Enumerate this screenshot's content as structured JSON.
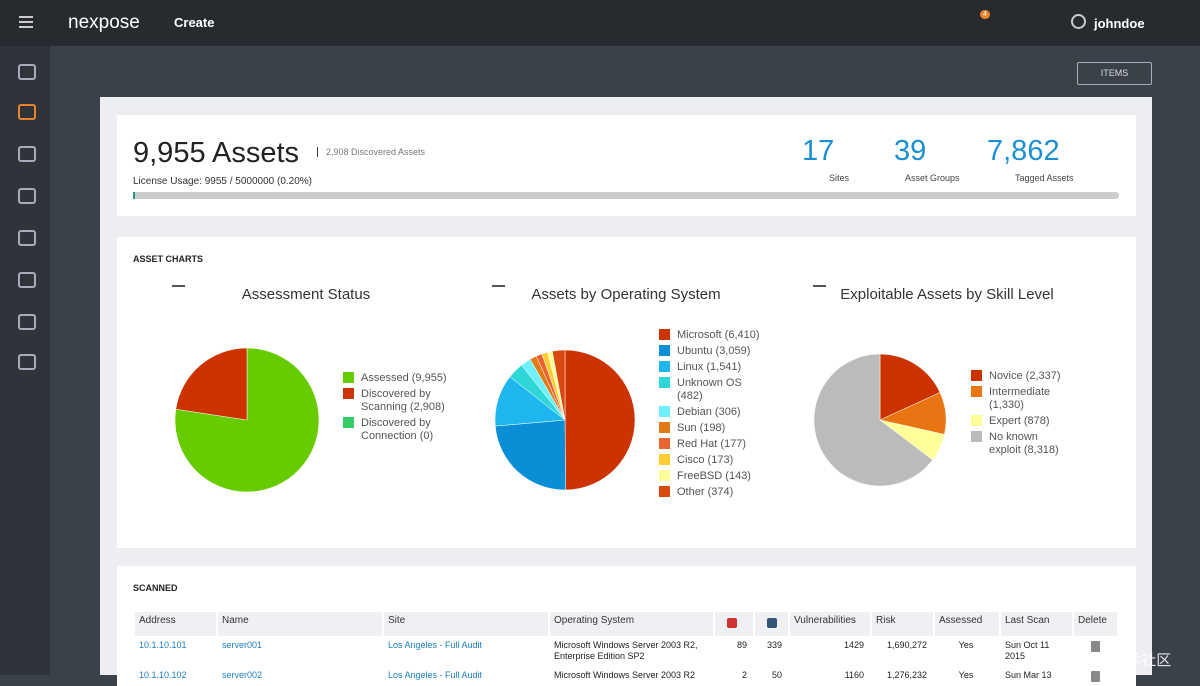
{
  "topbar": {
    "brand": "nexpose",
    "create": "Create",
    "notifications": "4",
    "user": "johndoe"
  },
  "toolbar": {
    "items": "ITEMS"
  },
  "summary": {
    "assets": "9,955 Assets",
    "discovered": "2,908 Discovered Assets",
    "license": "License Usage: 9955 / 5000000 (0.20%)",
    "stats": [
      {
        "value": "17",
        "label": "Sites"
      },
      {
        "value": "39",
        "label": "Asset Groups"
      },
      {
        "value": "7,862",
        "label": "Tagged Assets"
      }
    ]
  },
  "asset_charts": {
    "heading": "ASSET CHARTS"
  },
  "chart_data": [
    {
      "type": "pie",
      "title": "Assessment Status",
      "categories": [
        "Assessed (9,955)",
        "Discovered by Scanning (2,908)",
        "Discovered by Connection (0)"
      ],
      "values": [
        9955,
        2908,
        0
      ],
      "colors": [
        "#66cc00",
        "#cc3300",
        "#33cc66"
      ]
    },
    {
      "type": "pie",
      "title": "Assets by Operating System",
      "categories": [
        "Microsoft (6,410)",
        "Ubuntu (3,059)",
        "Linux (1,541)",
        "Unknown OS (482)",
        "Debian (306)",
        "Sun (198)",
        "Red Hat (177)",
        "Cisco (173)",
        "FreeBSD (143)",
        "Other (374)"
      ],
      "values": [
        6410,
        3059,
        1541,
        482,
        306,
        198,
        177,
        173,
        143,
        374
      ],
      "colors": [
        "#cc3300",
        "#0a8fd6",
        "#1eb6ee",
        "#2ed6d6",
        "#6ef0ff",
        "#e27a14",
        "#ea6432",
        "#ffcc33",
        "#ffff99",
        "#d9480f"
      ]
    },
    {
      "type": "pie",
      "title": "Exploitable Assets by Skill Level",
      "categories": [
        "Novice (2,337)",
        "Intermediate (1,330)",
        "Expert (878)",
        "No known exploit (8,318)"
      ],
      "values": [
        2337,
        1330,
        878,
        8318
      ],
      "colors": [
        "#cc3300",
        "#e87511",
        "#ffff99",
        "#bbbbbb"
      ]
    }
  ],
  "scanned": {
    "heading": "SCANNED",
    "columns": [
      "Address",
      "Name",
      "Site",
      "Operating System",
      "Vulnerabilities",
      "Risk",
      "Assessed",
      "Last Scan",
      "Delete"
    ],
    "rows": [
      [
        "10.1.10.101",
        "server001",
        "Los Angeles - Full Audit",
        "Microsoft Windows Server 2003 R2, Enterprise Edition SP2",
        "89",
        "339",
        "1429",
        "1,690,272",
        "Yes",
        "Sun Oct 11 2015"
      ],
      [
        "10.1.10.102",
        "server002",
        "Los Angeles - Full Audit",
        "Microsoft Windows Server 2003 R2",
        "2",
        "50",
        "1160",
        "1,276,232",
        "Yes",
        "Sun Mar 13"
      ]
    ]
  },
  "watermark": "@稀土掘金技术社区"
}
